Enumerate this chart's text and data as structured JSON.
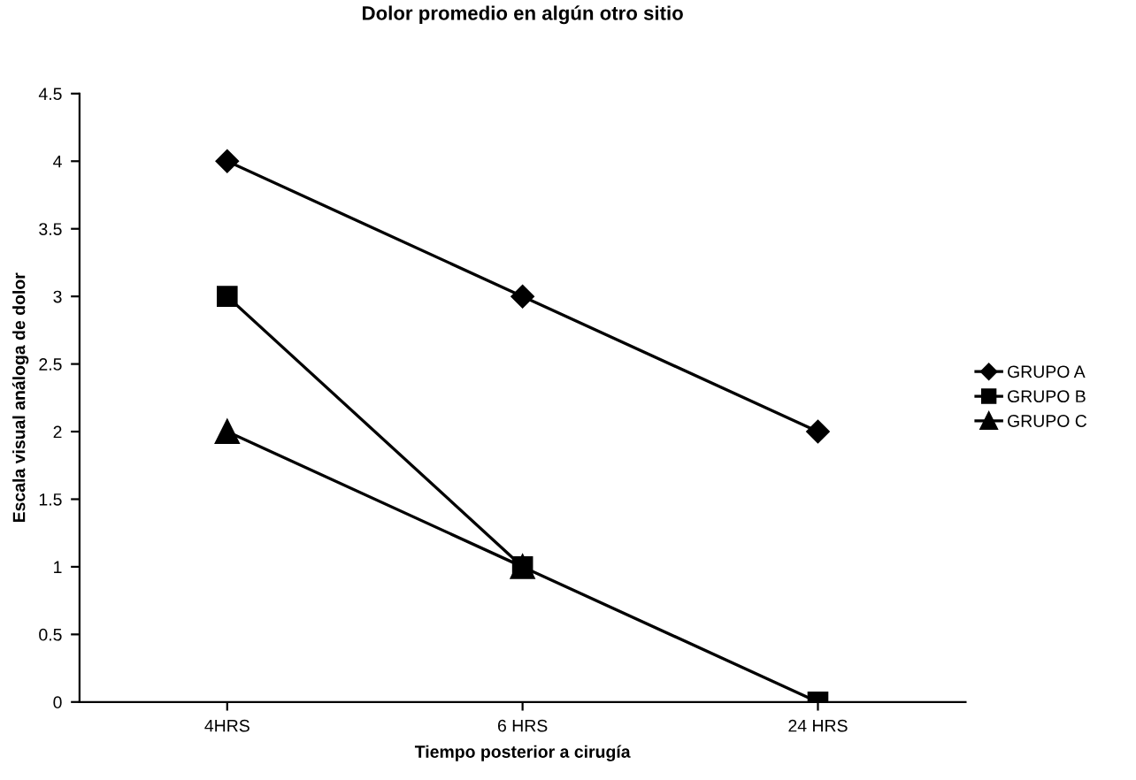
{
  "chart_data": {
    "type": "line",
    "title": "Dolor promedio en algún otro sitio",
    "xlabel": "Tiempo posterior a cirugía",
    "ylabel": "Escala visual análoga de dolor",
    "categories": [
      "4HRS",
      "6 HRS",
      "24 HRS"
    ],
    "series": [
      {
        "name": "GRUPO A",
        "color": "#000000",
        "marker": "diamond",
        "values": [
          4,
          3,
          2
        ]
      },
      {
        "name": "GRUPO B",
        "color": "#000000",
        "marker": "square",
        "values": [
          3,
          1,
          0
        ]
      },
      {
        "name": "GRUPO C",
        "color": "#000000",
        "marker": "triangle",
        "values": [
          2,
          1,
          null
        ]
      }
    ],
    "ylim": [
      0,
      4.5
    ],
    "yticks": [
      0,
      0.5,
      1,
      1.5,
      2,
      2.5,
      3,
      3.5,
      4,
      4.5
    ],
    "grid": false,
    "legend": "right",
    "line_style": "solid"
  }
}
